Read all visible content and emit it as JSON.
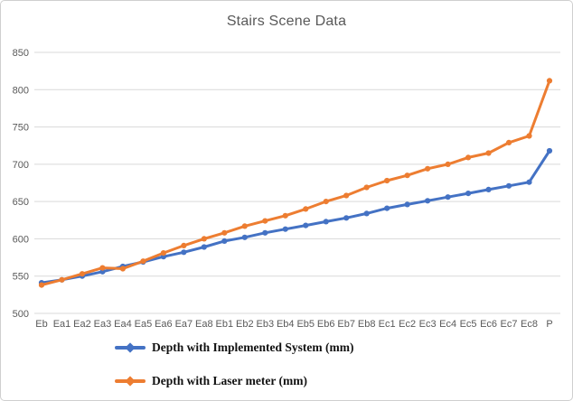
{
  "chart_data": {
    "type": "line",
    "title": "Stairs Scene Data",
    "categories": [
      "Eb",
      "Ea1",
      "Ea2",
      "Ea3",
      "Ea4",
      "Ea5",
      "Ea6",
      "Ea7",
      "Ea8",
      "Eb1",
      "Eb2",
      "Eb3",
      "Eb4",
      "Eb5",
      "Eb6",
      "Eb7",
      "Eb8",
      "Ec1",
      "Ec2",
      "Ec3",
      "Ec4",
      "Ec5",
      "Ec6",
      "Ec7",
      "Ec8",
      "P"
    ],
    "series": [
      {
        "name": "Depth with Implemented System (mm)",
        "color": "#4472C4",
        "values": [
          541,
          545,
          550,
          556,
          563,
          569,
          576,
          582,
          589,
          597,
          602,
          608,
          613,
          618,
          623,
          628,
          634,
          641,
          646,
          651,
          656,
          661,
          666,
          671,
          676,
          718
        ]
      },
      {
        "name": "Depth with Laser meter (mm)",
        "color": "#ED7D31",
        "values": [
          538,
          545,
          553,
          561,
          560,
          570,
          581,
          591,
          600,
          608,
          617,
          624,
          631,
          640,
          650,
          658,
          669,
          678,
          685,
          694,
          700,
          709,
          715,
          729,
          738,
          812
        ]
      }
    ],
    "ylim": [
      500,
      850
    ],
    "ytick_step": 50,
    "yticks": [
      "850",
      "800",
      "750",
      "700",
      "650",
      "600",
      "550",
      "500"
    ],
    "grid": true,
    "legend_position": "bottom-left"
  },
  "colors": {
    "gridline": "#D9D9D9",
    "axis_text": "#595959",
    "title_text": "#595959",
    "frame_border": "#CFCFCF"
  }
}
